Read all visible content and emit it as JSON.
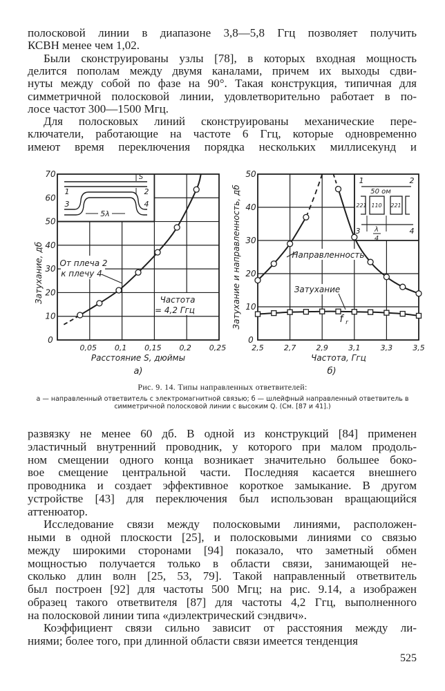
{
  "top_lines": [
    "полосковой линии в диапазоне 3,8—5,8 Ггц позволяет получить",
    "КСВН менее чем 1,02.",
    "Были сконструированы узлы [78], в которых входная мощность",
    "делится пополам между двумя каналами, причем их выходы сдви-",
    "нуты между собой по фазе на 90°. Такая конструкция, типичная для",
    "симметричной полосковой линии, удовлетворительно работает в по-",
    "лосе частот 300—1500 Мгц.",
    "Для полосковых линий сконструированы механические пере-",
    "ключатели, работающие на частоте 6 Ггц, которые одновременно",
    "имеют время переключения порядка нескольких миллисекунд и"
  ],
  "bottom_lines": [
    "развязку не менее 60 дб. В одной из конструкций [84] применен",
    "эластичный внутренний проводник, у которого при малом продоль-",
    "ном смещении одного конца возникает значительно большее боко-",
    "вое смещение центральной части. Последняя касается внешнего",
    "проводника и создает эффективное короткое замыкание. В другом",
    "устройстве [43] для переключения был использован вращающийся",
    "аттенюатор.",
    "Исследование связи между полосковыми линиями, расположен-",
    "ными в одной плоскости [25], и полосковыми линиями со связью",
    "между широкими сторонами [94] показало, что заметный обмен",
    "мощностью получается только в области связи, занимающей не-",
    "сколько длин волн [25, 53, 79]. Такой направленный ответвитель",
    "был построен [92] для частоты 500 Мгц; на рис. 9.14, а изображен",
    "образец такого ответвителя [87] для частоты 4,2 Ггц, выполненного",
    "на полосковой линии типа «диэлектрический сэндвич».",
    "Коэффициент связи сильно зависит от расстояния между ли-",
    "ниями; более того, при длинной области связи имеется тенденция"
  ],
  "caption": {
    "title": "Рис. 9. 14. Типы направленных ответвителей:",
    "body": "а — направленный ответвитель с электромагнитной связью; б — шлейфный направленный ответвитель в симметричной полосковой линии с высоким Q. (См. [87 и 41].)"
  },
  "page_number": "525",
  "chart_data": [
    {
      "type": "line",
      "panel_label": "а)",
      "xlabel": "Расстояние S, дюймы",
      "ylabel": "Затухание, дб",
      "xlim": [
        0,
        0.25
      ],
      "ylim": [
        0,
        70
      ],
      "x_ticks": [
        "0,05",
        "0,1",
        "0,15",
        "0,2",
        "0,25"
      ],
      "y_ticks": [
        "0",
        "10",
        "20",
        "30",
        "40",
        "50",
        "60",
        "70"
      ],
      "grid": true,
      "series": [
        {
          "name": "От плеча 2 к плечу 4",
          "x": [
            0.035,
            0.065,
            0.095,
            0.125,
            0.155,
            0.185,
            0.215
          ],
          "y": [
            10.5,
            15.5,
            21,
            28.5,
            37,
            47.5,
            63.5
          ]
        }
      ],
      "annotations": [
        "От плеча 2",
        "к плечу 4",
        "Частота",
        "= 4,2 Ггц"
      ],
      "inset_labels": {
        "s": "S",
        "p1": "1",
        "p2": "2",
        "p3": "3",
        "p4": "4",
        "len": "5λ"
      }
    },
    {
      "type": "line",
      "panel_label": "б)",
      "xlabel": "Частота, Ггц",
      "ylabel": "Затухание и направленность, дб",
      "xlim": [
        2.5,
        3.5
      ],
      "ylim": [
        0,
        50
      ],
      "x_ticks": [
        "2,5",
        "2,7",
        "2,9",
        "3,1",
        "3,3",
        "3,5"
      ],
      "y_ticks": [
        "0",
        "10",
        "20",
        "30",
        "40",
        "50"
      ],
      "grid": true,
      "series": [
        {
          "name": "Направленность",
          "x": [
            2.5,
            2.6,
            2.7,
            2.8,
            3.0,
            3.1,
            3.2,
            3.3,
            3.4,
            3.5
          ],
          "y": [
            18,
            23,
            29,
            37,
            45.5,
            31,
            23.5,
            19,
            16,
            14
          ],
          "marker": "circle"
        },
        {
          "name": "Затухание",
          "x": [
            2.5,
            2.6,
            2.7,
            2.8,
            2.9,
            3.0,
            3.1,
            3.2,
            3.3,
            3.4,
            3.5
          ],
          "y": [
            7.8,
            8.1,
            8.4,
            8.5,
            8.6,
            8.6,
            8.5,
            8.4,
            8.2,
            7.9,
            7.3
          ],
          "marker": "square"
        }
      ],
      "annotations": [
        "f",
        "r"
      ],
      "inset_labels": {
        "p1": "1",
        "p2": "2",
        "p3": "3",
        "p4": "4",
        "impedance": "50 ом",
        "z1": "221",
        "z2": "110",
        "z3": "221",
        "lam": "λ",
        "four": "4"
      }
    }
  ]
}
